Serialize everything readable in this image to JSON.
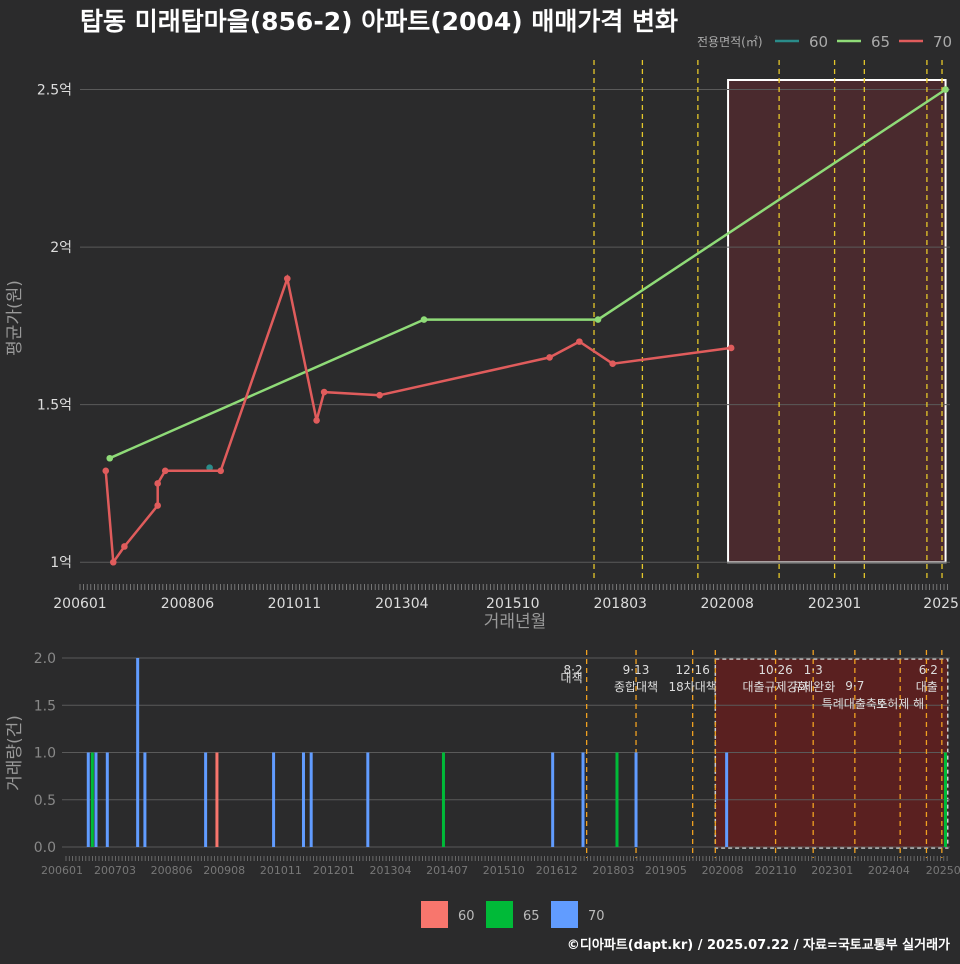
{
  "title": "탑동 미래탑마을(856-2) 아파트(2004) 매매가격 변화",
  "footer": "©디아파트(dapt.kr) / 2025.07.22 / 자료=국토교통부 실거래가",
  "colors": {
    "background": "#2b2b2c",
    "grid": "#5a5a5a",
    "line_60": "#2a8c8a",
    "line_65": "#8fdb78",
    "line_70": "#e05c5c",
    "bar_60": "#f8766d",
    "bar_65": "#00ba38",
    "bar_70": "#619cff",
    "policy_line": "#e5c72a",
    "policy_line_bottom": "#f0a020",
    "highlight_fill": "#4a2a2e",
    "highlight_fill_bottom": "#5a2020"
  },
  "chart_data": [
    {
      "type": "line",
      "title": "탑동 미래탑마을(856-2) 아파트(2004) 매매가격 변화",
      "xlabel": "거래년월",
      "ylabel": "평균가(원)",
      "x_tick_labels": [
        "200601",
        "200806",
        "201011",
        "201304",
        "201510",
        "201803",
        "202008",
        "202301",
        "2025"
      ],
      "y_ticks": [
        1.0,
        1.5,
        2.0,
        2.5
      ],
      "y_tick_labels": [
        "1억",
        "1.5억",
        "2억",
        "2.5억"
      ],
      "ylim": [
        0.95,
        2.6
      ],
      "x_range": [
        2006.0,
        2025.6
      ],
      "legend_title": "전용면적(㎡)",
      "legend_position": "top-right",
      "series": [
        {
          "name": "60",
          "points": [
            [
              2008.92,
              1.3
            ]
          ]
        },
        {
          "name": "65",
          "points": [
            [
              2006.67,
              1.33
            ],
            [
              2013.75,
              1.77
            ],
            [
              2017.67,
              1.77
            ],
            [
              2025.5,
              2.5
            ]
          ]
        },
        {
          "name": "70",
          "points": [
            [
              2006.58,
              1.29
            ],
            [
              2006.75,
              1.0
            ],
            [
              2007.0,
              1.05
            ],
            [
              2007.75,
              1.18
            ],
            [
              2007.75,
              1.25
            ],
            [
              2007.92,
              1.29
            ],
            [
              2009.17,
              1.29
            ],
            [
              2010.67,
              1.9
            ],
            [
              2011.33,
              1.45
            ],
            [
              2011.5,
              1.54
            ],
            [
              2012.75,
              1.53
            ],
            [
              2016.58,
              1.65
            ],
            [
              2017.25,
              1.7
            ],
            [
              2018.0,
              1.63
            ],
            [
              2020.67,
              1.68
            ]
          ]
        }
      ],
      "policy_lines_x": [
        2017.58,
        2018.67,
        2019.92,
        2021.75,
        2023.0,
        2023.67,
        2025.08,
        2025.42
      ],
      "highlight_x_range": [
        2020.6,
        2025.5
      ]
    },
    {
      "type": "bar",
      "xlabel": "",
      "ylabel": "거래량(건)",
      "x_tick_labels": [
        "200601",
        "200703",
        "200806",
        "200908",
        "201011",
        "201201",
        "201304",
        "201407",
        "201510",
        "201612",
        "201803",
        "201905",
        "202008",
        "202110",
        "202301",
        "202404",
        "20250"
      ],
      "y_ticks": [
        0.0,
        0.5,
        1.0,
        1.5,
        2.0
      ],
      "y_tick_labels": [
        "0.0",
        "0.5",
        "1.0",
        "1.5",
        "2.0"
      ],
      "ylim": [
        0,
        2.0
      ],
      "x_range": [
        2006.0,
        2025.6
      ],
      "legend_position": "bottom",
      "legend": [
        "60",
        "65",
        "70"
      ],
      "bars": [
        {
          "x": 2006.58,
          "value": 1,
          "series": "70"
        },
        {
          "x": 2006.67,
          "value": 1,
          "series": "65"
        },
        {
          "x": 2006.75,
          "value": 1,
          "series": "70"
        },
        {
          "x": 2007.0,
          "value": 1,
          "series": "70"
        },
        {
          "x": 2007.67,
          "value": 2,
          "series": "70"
        },
        {
          "x": 2007.83,
          "value": 1,
          "series": "70"
        },
        {
          "x": 2009.17,
          "value": 1,
          "series": "70"
        },
        {
          "x": 2009.42,
          "value": 1,
          "series": "60"
        },
        {
          "x": 2010.67,
          "value": 1,
          "series": "70"
        },
        {
          "x": 2011.33,
          "value": 1,
          "series": "70"
        },
        {
          "x": 2011.5,
          "value": 1,
          "series": "70"
        },
        {
          "x": 2012.75,
          "value": 1,
          "series": "70"
        },
        {
          "x": 2014.42,
          "value": 1,
          "series": "65"
        },
        {
          "x": 2016.83,
          "value": 1,
          "series": "70"
        },
        {
          "x": 2017.5,
          "value": 1,
          "series": "70"
        },
        {
          "x": 2018.25,
          "value": 1,
          "series": "65"
        },
        {
          "x": 2018.67,
          "value": 1,
          "series": "70"
        },
        {
          "x": 2020.67,
          "value": 1,
          "series": "70"
        },
        {
          "x": 2025.5,
          "value": 1,
          "series": "65"
        }
      ],
      "policy_events": [
        {
          "x": 2017.58,
          "date": "8·2",
          "label": "대책"
        },
        {
          "x": 2018.67,
          "date": "9·13",
          "label": "종합대책"
        },
        {
          "x": 2019.92,
          "date": "12·16",
          "label": "18차대책"
        },
        {
          "x": 2020.42,
          "date": "",
          "label": ""
        },
        {
          "x": 2021.75,
          "date": "10·26",
          "label": "대출규제강화"
        },
        {
          "x": 2022.58,
          "date": "1·3",
          "label": "규제완화"
        },
        {
          "x": 2023.5,
          "date": "9·7",
          "label": "특례대출축소"
        },
        {
          "x": 2024.5,
          "date": "",
          "label": "토허제 해"
        },
        {
          "x": 2025.08,
          "date": "",
          "label": ""
        },
        {
          "x": 2025.42,
          "date": "6·2",
          "label": "대출"
        }
      ],
      "highlight_x_range": [
        2020.42,
        2025.55
      ]
    }
  ]
}
